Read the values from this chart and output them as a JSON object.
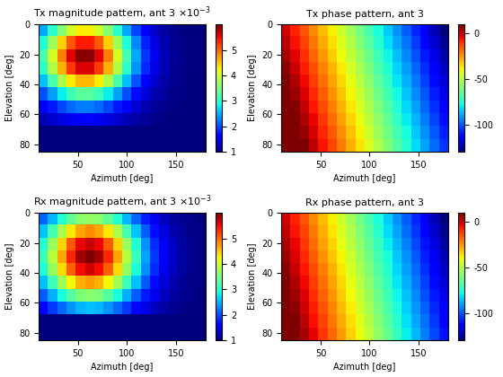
{
  "titles_mag": [
    "Tx magnitude pattern, ant 3",
    "Rx magnitude pattern, ant 3"
  ],
  "titles_phase": [
    "Tx phase pattern, ant 3",
    "Rx phase pattern, ant 3"
  ],
  "xlabel": "Azimuth [deg]",
  "ylabel": "Elevation [deg]",
  "az_min": 10,
  "az_max": 180,
  "el_min": 0,
  "el_max": 85,
  "mag_vmin": 0.001,
  "mag_vmax": 0.006,
  "phase_vmin": -130,
  "phase_vmax": 10,
  "mag_cmap": "jet",
  "phase_cmap": "jet",
  "mag_colorbar_ticks": [
    1,
    2,
    3,
    4,
    5
  ],
  "phase_colorbar_ticks": [
    0,
    -50,
    -100
  ],
  "xticks": [
    50,
    100,
    150
  ],
  "yticks": [
    0,
    20,
    40,
    60,
    80
  ],
  "figsize": [
    5.6,
    4.2
  ],
  "dpi": 100,
  "title_fontsize": 8,
  "label_fontsize": 7,
  "tick_fontsize": 7
}
